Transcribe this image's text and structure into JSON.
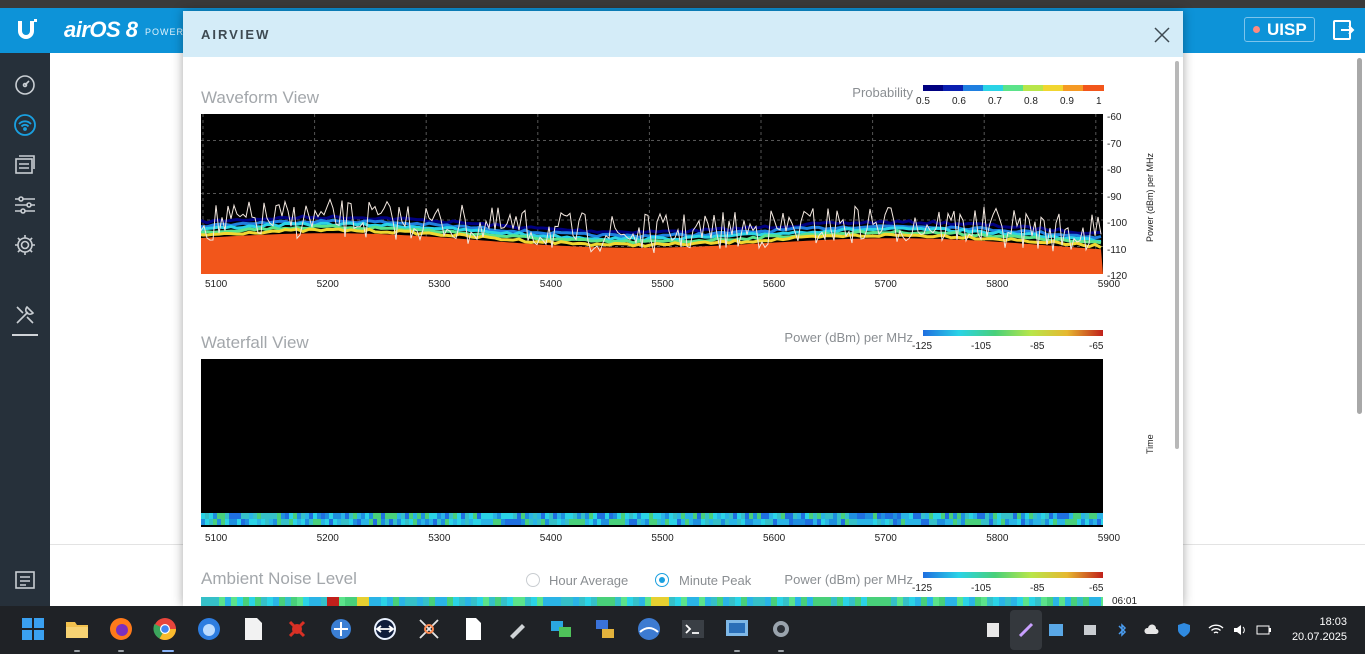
{
  "app": {
    "brand": "airOS 8",
    "brand_tagline": "POWERED",
    "uisp_label": "UISP"
  },
  "sidebar": {
    "items": [
      {
        "name": "dashboard-icon"
      },
      {
        "name": "wireless-icon"
      },
      {
        "name": "network-icon"
      },
      {
        "name": "services-icon"
      },
      {
        "name": "settings-icon"
      },
      {
        "name": "tools-icon"
      },
      {
        "name": "log-icon"
      }
    ]
  },
  "modal": {
    "title": "AIRVIEW"
  },
  "waveform": {
    "title": "Waveform View",
    "legend_label": "Probability",
    "legend_ticks": [
      "0.5",
      "0.6",
      "0.7",
      "0.8",
      "0.9",
      "1"
    ],
    "legend_colors": [
      "#000080",
      "#0a1fb0",
      "#1f7fe0",
      "#2ad3e6",
      "#5be38a",
      "#b8e64a",
      "#f1d630",
      "#f59a24",
      "#f2561b"
    ],
    "x_ticks": [
      "5100",
      "5200",
      "5300",
      "5400",
      "5500",
      "5600",
      "5700",
      "5800",
      "5900"
    ],
    "y_ticks": [
      "-60",
      "-70",
      "-80",
      "-90",
      "-100",
      "-110",
      "-120"
    ],
    "y_label": "Power (dBm) per MHz"
  },
  "waterfall": {
    "title": "Waterfall View",
    "legend_label": "Power (dBm) per MHz",
    "legend_ticks": [
      "-125",
      "-105",
      "-85",
      "-65"
    ],
    "x_ticks": [
      "5100",
      "5200",
      "5300",
      "5400",
      "5500",
      "5600",
      "5700",
      "5800",
      "5900"
    ],
    "y_label": "Time"
  },
  "ambient": {
    "title": "Ambient Noise Level",
    "option_hour": "Hour Average",
    "option_minute": "Minute Peak",
    "selected": "Minute Peak",
    "legend_label": "Power (dBm) per MHz",
    "legend_ticks": [
      "-125",
      "-105",
      "-85",
      "-65"
    ],
    "time_label": "06:01"
  },
  "taskbar": {
    "time": "18:03",
    "date": "20.07.2025"
  }
}
